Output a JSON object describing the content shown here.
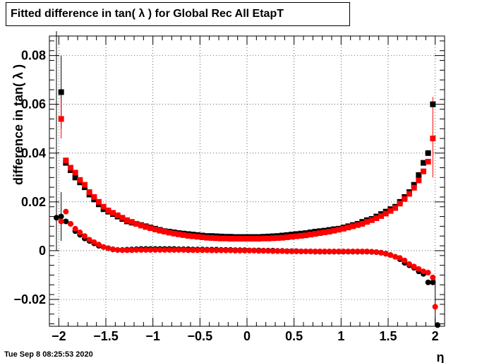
{
  "title": "Fitted difference in tan( λ ) for Global Rec All EtapT",
  "timestamp": "Tue Sep  8 08:25:53 2020",
  "chart_data": {
    "type": "scatter",
    "title": "Fitted difference in tan( λ ) for Global Rec All EtapT",
    "xlabel": "η",
    "ylabel": "difference in tan( λ )",
    "xlim": [
      -2.1,
      2.1
    ],
    "ylim": [
      -0.031,
      0.088
    ],
    "x_ticks": [
      -2,
      -1.5,
      -1,
      -0.5,
      0,
      0.5,
      1,
      1.5,
      2
    ],
    "x_tick_labels": [
      "−2",
      "−1.5",
      "−1",
      "−0.5",
      "0",
      "0.5",
      "1",
      "1.5",
      "2"
    ],
    "y_ticks": [
      -0.02,
      0,
      0.02,
      0.04,
      0.06,
      0.08
    ],
    "y_tick_labels": [
      "−0.02",
      "0",
      "0.02",
      "0.04",
      "0.06",
      "0.08"
    ],
    "grid": true,
    "series": [
      {
        "color": "#000000",
        "marker": "square",
        "x": [
          -1.975,
          -1.925,
          -1.875,
          -1.825,
          -1.775,
          -1.725,
          -1.675,
          -1.625,
          -1.575,
          -1.525,
          -1.475,
          -1.425,
          -1.375,
          -1.325,
          -1.275,
          -1.225,
          -1.175,
          -1.125,
          -1.075,
          -1.025,
          -0.975,
          -0.925,
          -0.875,
          -0.825,
          -0.775,
          -0.725,
          -0.675,
          -0.625,
          -0.575,
          -0.525,
          -0.475,
          -0.425,
          -0.375,
          -0.325,
          -0.275,
          -0.225,
          -0.175,
          -0.125,
          -0.075,
          -0.025,
          0.025,
          0.075,
          0.125,
          0.175,
          0.225,
          0.275,
          0.325,
          0.375,
          0.425,
          0.475,
          0.525,
          0.575,
          0.625,
          0.675,
          0.725,
          0.775,
          0.825,
          0.875,
          0.925,
          0.975,
          1.025,
          1.075,
          1.125,
          1.175,
          1.225,
          1.275,
          1.325,
          1.375,
          1.425,
          1.475,
          1.525,
          1.575,
          1.625,
          1.675,
          1.725,
          1.775,
          1.825,
          1.875,
          1.925,
          1.975
        ],
        "y": [
          0.065,
          0.036,
          0.033,
          0.03,
          0.028,
          0.026,
          0.023,
          0.021,
          0.019,
          0.017,
          0.016,
          0.015,
          0.014,
          0.013,
          0.012,
          0.0115,
          0.011,
          0.0105,
          0.01,
          0.0095,
          0.009,
          0.0085,
          0.008,
          0.0078,
          0.0075,
          0.0072,
          0.007,
          0.0068,
          0.0066,
          0.0064,
          0.0062,
          0.006,
          0.006,
          0.0059,
          0.0058,
          0.0057,
          0.0057,
          0.0056,
          0.0056,
          0.0056,
          0.0056,
          0.0056,
          0.0056,
          0.0057,
          0.0058,
          0.0059,
          0.006,
          0.0062,
          0.0064,
          0.0066,
          0.0068,
          0.007,
          0.0072,
          0.0075,
          0.0078,
          0.008,
          0.0082,
          0.0085,
          0.0088,
          0.009,
          0.0095,
          0.01,
          0.0105,
          0.011,
          0.0118,
          0.0125,
          0.013,
          0.014,
          0.015,
          0.016,
          0.017,
          0.018,
          0.02,
          0.022,
          0.024,
          0.027,
          0.031,
          0.036,
          0.04,
          0.06
        ]
      },
      {
        "color": "#ff0000",
        "marker": "square",
        "x": [
          -1.975,
          -1.925,
          -1.875,
          -1.825,
          -1.775,
          -1.725,
          -1.675,
          -1.625,
          -1.575,
          -1.525,
          -1.475,
          -1.425,
          -1.375,
          -1.325,
          -1.275,
          -1.225,
          -1.175,
          -1.125,
          -1.075,
          -1.025,
          -0.975,
          -0.925,
          -0.875,
          -0.825,
          -0.775,
          -0.725,
          -0.675,
          -0.625,
          -0.575,
          -0.525,
          -0.475,
          -0.425,
          -0.375,
          -0.325,
          -0.275,
          -0.225,
          -0.175,
          -0.125,
          -0.075,
          -0.025,
          0.025,
          0.075,
          0.125,
          0.175,
          0.225,
          0.275,
          0.325,
          0.375,
          0.425,
          0.475,
          0.525,
          0.575,
          0.625,
          0.675,
          0.725,
          0.775,
          0.825,
          0.875,
          0.925,
          0.975,
          1.025,
          1.075,
          1.125,
          1.175,
          1.225,
          1.275,
          1.325,
          1.375,
          1.425,
          1.475,
          1.525,
          1.575,
          1.625,
          1.675,
          1.725,
          1.775,
          1.825,
          1.875,
          1.925,
          1.975
        ],
        "y": [
          0.054,
          0.037,
          0.034,
          0.032,
          0.029,
          0.027,
          0.024,
          0.022,
          0.02,
          0.018,
          0.0165,
          0.0155,
          0.0145,
          0.0135,
          0.0125,
          0.0118,
          0.011,
          0.0103,
          0.0097,
          0.0092,
          0.0087,
          0.0082,
          0.0078,
          0.0074,
          0.007,
          0.0067,
          0.0064,
          0.0061,
          0.0059,
          0.0057,
          0.0055,
          0.0053,
          0.0052,
          0.0051,
          0.005,
          0.005,
          0.0049,
          0.0049,
          0.0049,
          0.0049,
          0.0049,
          0.0049,
          0.0049,
          0.005,
          0.005,
          0.0051,
          0.0052,
          0.0053,
          0.0055,
          0.0057,
          0.0059,
          0.0061,
          0.0063,
          0.0066,
          0.0069,
          0.0072,
          0.0075,
          0.0078,
          0.0082,
          0.0086,
          0.009,
          0.0095,
          0.01,
          0.0105,
          0.011,
          0.0118,
          0.0125,
          0.0133,
          0.0142,
          0.0152,
          0.0163,
          0.0175,
          0.0193,
          0.0212,
          0.0233,
          0.0258,
          0.0288,
          0.0325,
          0.0365,
          0.046
        ]
      },
      {
        "color": "#000000",
        "marker": "circle",
        "x": [
          -2.025,
          -1.975,
          -1.925,
          -1.875,
          -1.825,
          -1.775,
          -1.725,
          -1.675,
          -1.625,
          -1.575,
          -1.525,
          -1.475,
          -1.425,
          -1.375,
          -1.325,
          -1.275,
          -1.225,
          -1.175,
          -1.125,
          -1.075,
          -1.025,
          -0.975,
          -0.925,
          -0.875,
          -0.825,
          -0.775,
          -0.725,
          -0.675,
          -0.625,
          -0.575,
          -0.525,
          -0.475,
          -0.425,
          -0.375,
          -0.325,
          -0.275,
          -0.225,
          -0.175,
          -0.125,
          -0.075,
          -0.025,
          0.025,
          0.075,
          0.125,
          0.175,
          0.225,
          0.275,
          0.325,
          0.375,
          0.425,
          0.475,
          0.525,
          0.575,
          0.625,
          0.675,
          0.725,
          0.775,
          0.825,
          0.875,
          0.925,
          0.975,
          1.025,
          1.075,
          1.125,
          1.175,
          1.225,
          1.275,
          1.325,
          1.375,
          1.425,
          1.475,
          1.525,
          1.575,
          1.625,
          1.675,
          1.725,
          1.775,
          1.825,
          1.875,
          1.925,
          1.975,
          2.025
        ],
        "y": [
          0.0135,
          0.014,
          0.012,
          0.011,
          0.008,
          0.0065,
          0.005,
          0.004,
          0.003,
          0.002,
          0.0015,
          0.001,
          0.0005,
          0.0003,
          0.0003,
          0.0004,
          0.0005,
          0.0006,
          0.0007,
          0.0007,
          0.0007,
          0.0007,
          0.0007,
          0.0007,
          0.0007,
          0.0007,
          0.0006,
          0.0006,
          0.0006,
          0.0005,
          0.0005,
          0.0005,
          0.0004,
          0.0004,
          0.0004,
          0.0003,
          0.0003,
          0.0003,
          0.0002,
          0.0002,
          0.0002,
          0.0001,
          0.0001,
          0.0001,
          0.0,
          0.0,
          0.0,
          -0.0001,
          -0.0001,
          -0.0002,
          -0.0002,
          -0.0002,
          -0.0003,
          -0.0003,
          -0.0003,
          -0.0004,
          -0.0004,
          -0.0004,
          -0.0004,
          -0.0004,
          -0.0004,
          -0.0004,
          -0.0004,
          -0.0004,
          -0.0004,
          -0.0004,
          -0.0004,
          -0.0005,
          -0.0006,
          -0.0008,
          -0.0012,
          -0.0018,
          -0.0025,
          -0.0035,
          -0.005,
          -0.006,
          -0.007,
          -0.0085,
          -0.0095,
          -0.013,
          -0.013,
          -0.0305
        ]
      },
      {
        "color": "#ff0000",
        "marker": "circle",
        "x": [
          -1.975,
          -1.925,
          -1.875,
          -1.825,
          -1.775,
          -1.725,
          -1.675,
          -1.625,
          -1.575,
          -1.525,
          -1.475,
          -1.425,
          -1.375,
          -1.325,
          -1.275,
          -1.225,
          -1.175,
          -1.125,
          -1.075,
          -1.025,
          -0.975,
          -0.925,
          -0.875,
          -0.825,
          -0.775,
          -0.725,
          -0.675,
          -0.625,
          -0.575,
          -0.525,
          -0.475,
          -0.425,
          -0.375,
          -0.325,
          -0.275,
          -0.225,
          -0.175,
          -0.125,
          -0.075,
          -0.025,
          0.025,
          0.075,
          0.125,
          0.175,
          0.225,
          0.275,
          0.325,
          0.375,
          0.425,
          0.475,
          0.525,
          0.575,
          0.625,
          0.675,
          0.725,
          0.775,
          0.825,
          0.875,
          0.925,
          0.975,
          1.025,
          1.075,
          1.125,
          1.175,
          1.225,
          1.275,
          1.325,
          1.375,
          1.425,
          1.475,
          1.525,
          1.575,
          1.625,
          1.675,
          1.725,
          1.775,
          1.825,
          1.875,
          1.925,
          1.975,
          2.0
        ],
        "y": [
          0.012,
          0.016,
          0.011,
          0.009,
          0.0075,
          0.006,
          0.0045,
          0.0035,
          0.0025,
          0.0015,
          0.001,
          0.0006,
          0.0003,
          0.0002,
          0.0002,
          0.0002,
          0.0003,
          0.0003,
          0.0003,
          0.0003,
          0.0003,
          0.0003,
          0.0003,
          0.0003,
          0.0003,
          0.0003,
          0.0003,
          0.0002,
          0.0002,
          0.0002,
          0.0002,
          0.0002,
          0.0001,
          0.0001,
          0.0001,
          0.0001,
          0.0001,
          0.0,
          0.0,
          0.0,
          0.0,
          0.0,
          -0.0001,
          -0.0001,
          -0.0001,
          -0.0002,
          -0.0002,
          -0.0002,
          -0.0003,
          -0.0003,
          -0.0003,
          -0.0003,
          -0.0003,
          -0.0003,
          -0.0003,
          -0.0003,
          -0.0003,
          -0.0003,
          -0.0003,
          -0.0003,
          -0.0003,
          -0.0003,
          -0.0003,
          -0.0003,
          -0.0003,
          -0.0003,
          -0.0004,
          -0.0006,
          -0.0009,
          -0.0013,
          -0.0018,
          -0.0025,
          -0.003,
          -0.004,
          -0.0055,
          -0.0065,
          -0.0075,
          -0.0085,
          -0.009,
          -0.011,
          -0.023
        ]
      }
    ]
  }
}
